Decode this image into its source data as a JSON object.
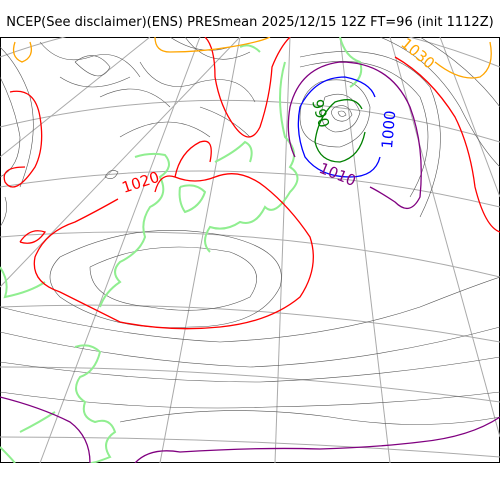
{
  "title": "NCEP(See disclaimer)(ENS) PRESmean 2025/12/15 12Z FT=96 (init 1112Z)",
  "contour_labels": {
    "l1020": "1020",
    "l1010": "1010",
    "l1000": "1000",
    "l990": "990",
    "l1030": "1030"
  },
  "colors": {
    "c1020": "#ff0000",
    "c1010": "#800080",
    "c1000": "#0000ff",
    "c990": "#008000",
    "c1030": "#ffa500",
    "coast": "#90ee90",
    "grid": "#aaaaaa",
    "isobar": "#555555"
  }
}
